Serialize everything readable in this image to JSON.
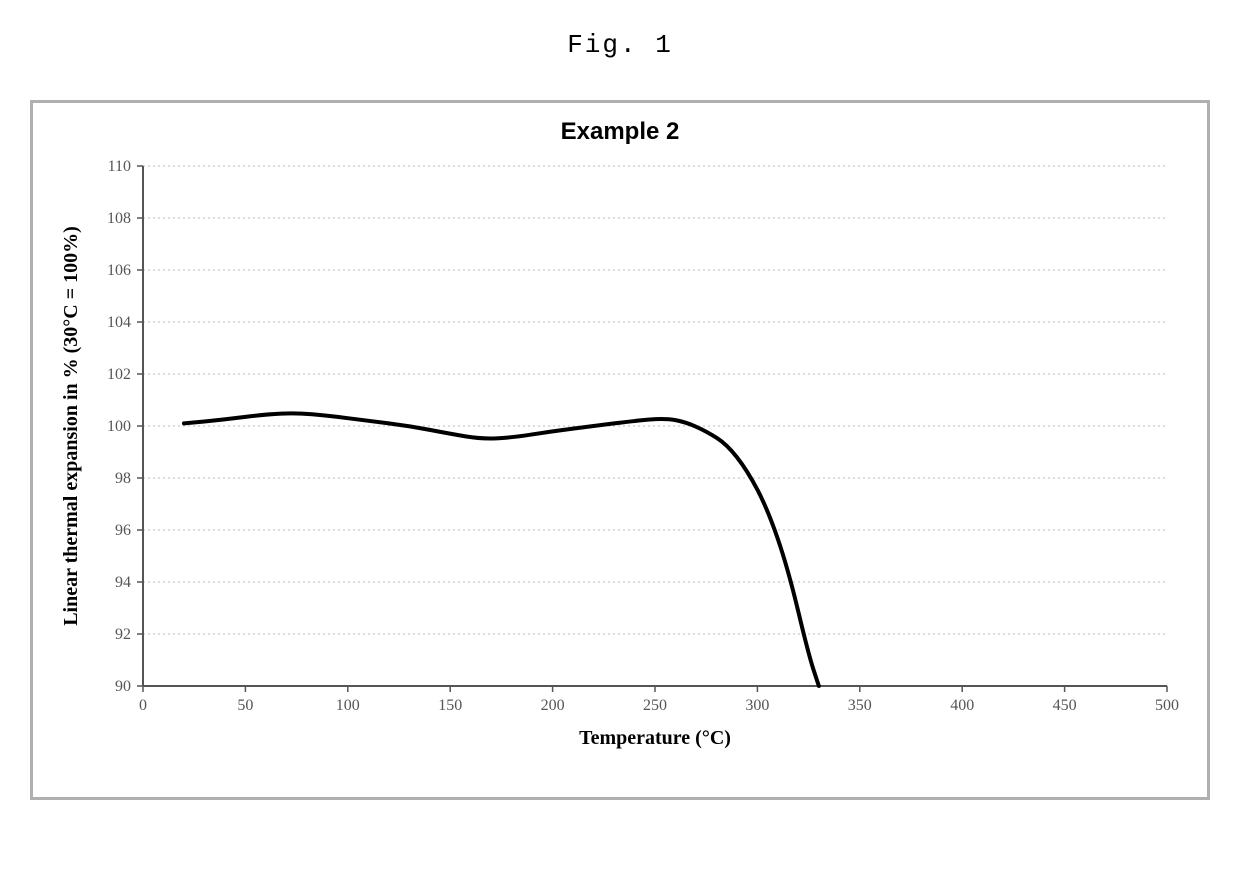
{
  "figure_label": "Fig. 1",
  "chart": {
    "type": "line",
    "title": "Example 2",
    "title_fontsize": 24,
    "xlabel": "Temperature (°C)",
    "ylabel": "Linear thermal expansion in % (30°C = 100%)",
    "label_fontsize": 20,
    "tick_fontsize": 16,
    "background_color": "#ffffff",
    "frame_color": "#b0b0b0",
    "axis_line_color": "#555555",
    "grid_color": "#b8b8b8",
    "grid_dash": "2,3",
    "line_color": "#000000",
    "line_width": 4,
    "xlim": [
      0,
      500
    ],
    "ylim": [
      90,
      110
    ],
    "xticks": [
      0,
      50,
      100,
      150,
      200,
      250,
      300,
      350,
      400,
      450,
      500
    ],
    "yticks": [
      90,
      92,
      94,
      96,
      98,
      100,
      102,
      104,
      106,
      108,
      110
    ],
    "series": [
      {
        "name": "expansion",
        "x": [
          20,
          40,
          60,
          75,
          90,
          110,
          130,
          150,
          165,
          180,
          200,
          220,
          240,
          255,
          265,
          275,
          285,
          295,
          305,
          315,
          325,
          330
        ],
        "y": [
          100.1,
          100.25,
          100.45,
          100.5,
          100.4,
          100.2,
          100.0,
          99.7,
          99.5,
          99.55,
          99.8,
          100.0,
          100.2,
          100.3,
          100.15,
          99.8,
          99.3,
          98.3,
          96.8,
          94.5,
          91.2,
          90.0
        ]
      }
    ]
  }
}
